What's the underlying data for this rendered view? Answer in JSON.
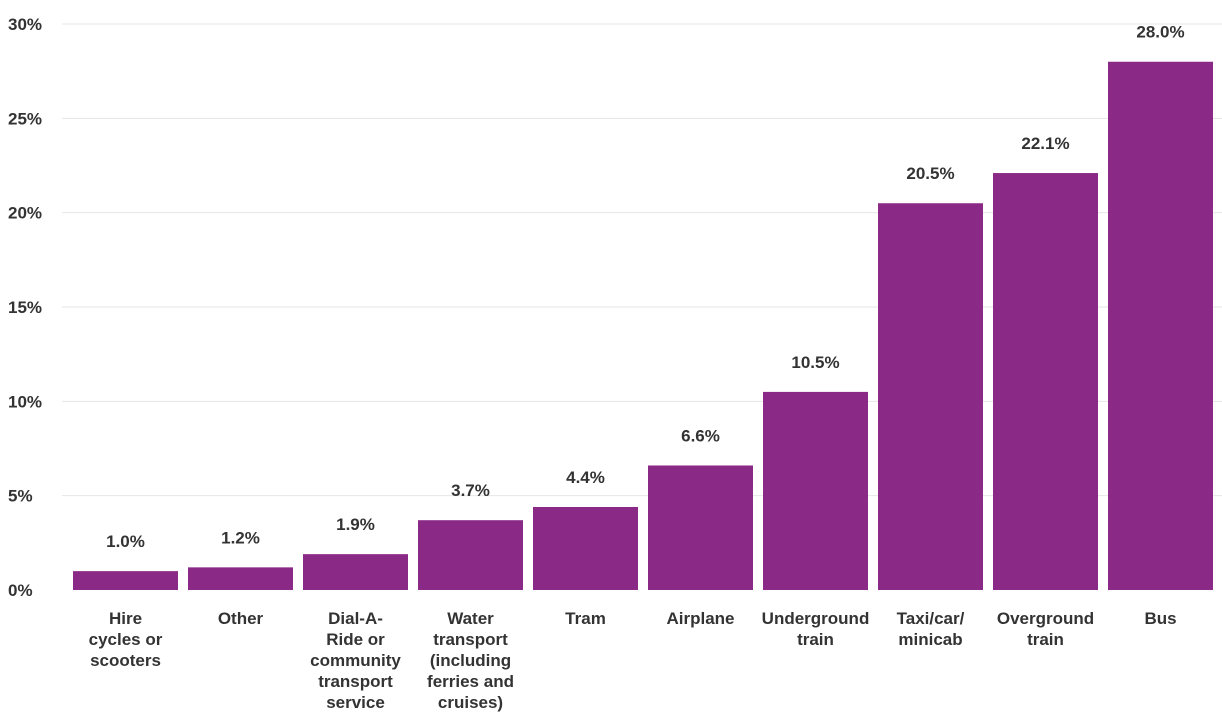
{
  "chart_data": {
    "type": "bar",
    "categories": [
      "Hire cycles or scooters",
      "Other",
      "Dial-A-Ride or community transport service",
      "Water transport (including ferries and cruises)",
      "Tram",
      "Airplane",
      "Underground train",
      "Taxi/car/ minicab",
      "Overground train",
      "Bus"
    ],
    "category_lines": [
      [
        "Hire",
        "cycles or",
        "scooters"
      ],
      [
        "Other"
      ],
      [
        "Dial-A-",
        "Ride or",
        "community",
        "transport",
        "service"
      ],
      [
        "Water",
        "transport",
        "(including",
        "ferries and",
        "cruises)"
      ],
      [
        "Tram"
      ],
      [
        "Airplane"
      ],
      [
        "Underground",
        "train"
      ],
      [
        "Taxi/car/",
        "minicab"
      ],
      [
        "Overground",
        "train"
      ],
      [
        "Bus"
      ]
    ],
    "values": [
      1.0,
      1.2,
      1.9,
      3.7,
      4.4,
      6.6,
      10.5,
      20.5,
      22.1,
      28.0
    ],
    "data_labels": [
      "1.0%",
      "1.2%",
      "1.9%",
      "3.7%",
      "4.4%",
      "6.6%",
      "10.5%",
      "20.5%",
      "22.1%",
      "28.0%"
    ],
    "ylim": [
      0,
      30
    ],
    "yticks": [
      0,
      5,
      10,
      15,
      20,
      25,
      30
    ],
    "ytick_labels": [
      "0%",
      "5%",
      "10%",
      "15%",
      "20%",
      "25%",
      "30%"
    ],
    "grid": true,
    "bar_color": "#8b2a86",
    "title": "",
    "xlabel": "",
    "ylabel": ""
  }
}
